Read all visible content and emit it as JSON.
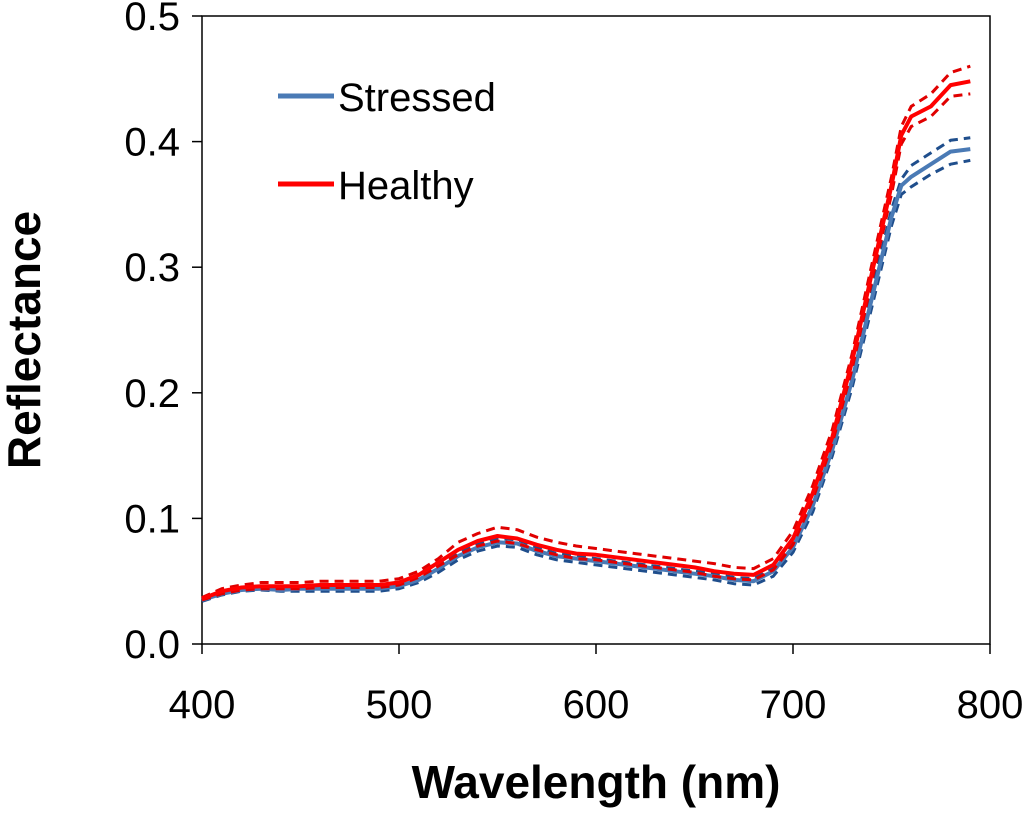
{
  "chart_data": {
    "type": "line",
    "title": "",
    "xlabel": "Wavelength (nm)",
    "ylabel": "Reflectance",
    "xlim": [
      400,
      800
    ],
    "ylim": [
      0,
      0.5
    ],
    "xticks": [
      400,
      500,
      600,
      700,
      800
    ],
    "xtick_labels": [
      "400",
      "500",
      "600",
      "700",
      "800"
    ],
    "yticks": [
      0,
      0.1,
      0.2,
      0.3,
      0.4,
      0.5
    ],
    "ytick_labels": [
      "0.0",
      "0.1",
      "0.2",
      "0.3",
      "0.4",
      "0.5"
    ],
    "grid": false,
    "legend_position": "top-left",
    "x": [
      400,
      410,
      420,
      430,
      440,
      450,
      460,
      470,
      480,
      490,
      500,
      510,
      520,
      530,
      540,
      550,
      560,
      570,
      580,
      590,
      600,
      610,
      620,
      630,
      640,
      650,
      660,
      670,
      680,
      690,
      700,
      710,
      720,
      730,
      740,
      750,
      755,
      760,
      770,
      780,
      790
    ],
    "series": [
      {
        "name": "Stressed",
        "color": "#4a7ab5",
        "values": [
          0.035,
          0.04,
          0.043,
          0.044,
          0.043,
          0.044,
          0.044,
          0.044,
          0.044,
          0.044,
          0.046,
          0.051,
          0.06,
          0.07,
          0.077,
          0.081,
          0.08,
          0.074,
          0.07,
          0.068,
          0.066,
          0.064,
          0.062,
          0.06,
          0.058,
          0.056,
          0.054,
          0.051,
          0.05,
          0.058,
          0.077,
          0.11,
          0.155,
          0.21,
          0.275,
          0.34,
          0.365,
          0.372,
          0.382,
          0.392,
          0.394
        ],
        "upper": [
          0.036,
          0.041,
          0.044,
          0.045,
          0.044,
          0.045,
          0.045,
          0.045,
          0.045,
          0.046,
          0.048,
          0.053,
          0.062,
          0.073,
          0.08,
          0.084,
          0.083,
          0.077,
          0.072,
          0.07,
          0.068,
          0.066,
          0.064,
          0.062,
          0.06,
          0.058,
          0.056,
          0.053,
          0.052,
          0.06,
          0.08,
          0.114,
          0.16,
          0.216,
          0.281,
          0.346,
          0.37,
          0.381,
          0.391,
          0.401,
          0.403
        ],
        "lower": [
          0.034,
          0.039,
          0.042,
          0.043,
          0.042,
          0.042,
          0.042,
          0.042,
          0.042,
          0.042,
          0.044,
          0.049,
          0.057,
          0.067,
          0.074,
          0.078,
          0.077,
          0.071,
          0.067,
          0.065,
          0.063,
          0.061,
          0.059,
          0.057,
          0.055,
          0.053,
          0.051,
          0.048,
          0.047,
          0.054,
          0.073,
          0.105,
          0.15,
          0.204,
          0.268,
          0.333,
          0.358,
          0.364,
          0.374,
          0.382,
          0.385
        ]
      },
      {
        "name": "Healthy",
        "color": "#ff0000",
        "values": [
          0.036,
          0.042,
          0.045,
          0.046,
          0.046,
          0.046,
          0.047,
          0.047,
          0.047,
          0.047,
          0.049,
          0.055,
          0.065,
          0.075,
          0.082,
          0.086,
          0.084,
          0.079,
          0.075,
          0.072,
          0.071,
          0.069,
          0.067,
          0.065,
          0.063,
          0.061,
          0.058,
          0.056,
          0.055,
          0.063,
          0.084,
          0.12,
          0.165,
          0.225,
          0.295,
          0.365,
          0.405,
          0.42,
          0.428,
          0.445,
          0.448
        ],
        "upper": [
          0.037,
          0.044,
          0.047,
          0.049,
          0.049,
          0.049,
          0.05,
          0.05,
          0.05,
          0.05,
          0.052,
          0.058,
          0.068,
          0.081,
          0.088,
          0.093,
          0.091,
          0.085,
          0.081,
          0.078,
          0.076,
          0.074,
          0.072,
          0.07,
          0.068,
          0.066,
          0.064,
          0.061,
          0.06,
          0.068,
          0.09,
          0.126,
          0.171,
          0.231,
          0.302,
          0.372,
          0.412,
          0.428,
          0.438,
          0.455,
          0.46
        ],
        "lower": [
          0.035,
          0.04,
          0.043,
          0.044,
          0.044,
          0.044,
          0.045,
          0.045,
          0.045,
          0.045,
          0.047,
          0.053,
          0.062,
          0.071,
          0.078,
          0.082,
          0.08,
          0.075,
          0.071,
          0.068,
          0.067,
          0.065,
          0.063,
          0.061,
          0.059,
          0.057,
          0.054,
          0.052,
          0.051,
          0.059,
          0.079,
          0.115,
          0.16,
          0.219,
          0.289,
          0.358,
          0.398,
          0.412,
          0.42,
          0.436,
          0.438
        ]
      }
    ]
  }
}
